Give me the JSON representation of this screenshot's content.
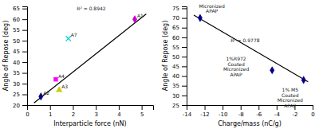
{
  "chart_data": [
    {
      "type": "scatter",
      "xlabel": "Interparticle force (nN)",
      "ylabel": "Angle of Repose (deg)",
      "series": [
        {
          "name": "A2",
          "type": "scatter",
          "color": "#00008B",
          "marker": "diamond",
          "x": [
            0.6
          ],
          "values": [
            24
          ]
        },
        {
          "name": "A4",
          "type": "scatter",
          "color": "#FF00FF",
          "marker": "square",
          "x": [
            1.25
          ],
          "values": [
            32
          ]
        },
        {
          "name": "A3",
          "type": "scatter",
          "color": "#CCCC00",
          "marker": "triangle",
          "x": [
            1.4
          ],
          "values": [
            27
          ]
        },
        {
          "name": "A7",
          "type": "scatter",
          "color": "#00CCCC",
          "marker": "x",
          "x": [
            1.8
          ],
          "values": [
            51
          ]
        },
        {
          "name": "A1",
          "type": "scatter",
          "color": "#CC00CC",
          "marker": "diamond",
          "x": [
            4.7
          ],
          "values": [
            60
          ]
        },
        {
          "type": "line",
          "color": "black",
          "x": [
            0.3,
            5.2
          ],
          "values": [
            21.0,
            62.5
          ]
        }
      ],
      "annotations": [
        {
          "text": "R² = 0.8942",
          "x": 2.8,
          "y": 63.5
        }
      ],
      "xlim": [
        0,
        5.5
      ],
      "ylim": [
        20,
        66
      ],
      "xticks": [
        0,
        1,
        2,
        3,
        4,
        5
      ],
      "yticks": [
        20,
        25,
        30,
        35,
        40,
        45,
        50,
        55,
        60,
        65
      ]
    },
    {
      "type": "scatter",
      "xlabel": "Charge/mass (nC/g)",
      "ylabel": "Angle of Repose (deg)",
      "series": [
        {
          "type": "scatter",
          "color": "#00008B",
          "marker": "diamond",
          "x": [
            -12.5,
            -4.5,
            -1.0
          ],
          "values": [
            70,
            43,
            38
          ]
        },
        {
          "type": "line",
          "color": "black",
          "x": [
            -13.2,
            -0.5
          ],
          "values": [
            71.5,
            37.0
          ]
        }
      ],
      "annotations": [
        {
          "text": "Micronized\nAPAP",
          "x": -11.2,
          "y": 72
        },
        {
          "text": "1%R972\nCoated\nMicronized\nAPAP",
          "x": -8.5,
          "y": 50
        },
        {
          "text": "1% M5\nCoated\nMicronized\nAPAP",
          "x": -2.5,
          "y": 34
        },
        {
          "text": "R² = 0.9778",
          "x": -7.5,
          "y": 57
        }
      ],
      "xlim": [
        -14,
        0
      ],
      "ylim": [
        25,
        76
      ],
      "xticks": [
        -14,
        -12,
        -10,
        -8,
        -6,
        -4,
        -2,
        0
      ],
      "yticks": [
        25,
        30,
        35,
        40,
        45,
        50,
        55,
        60,
        65,
        70,
        75
      ]
    }
  ]
}
